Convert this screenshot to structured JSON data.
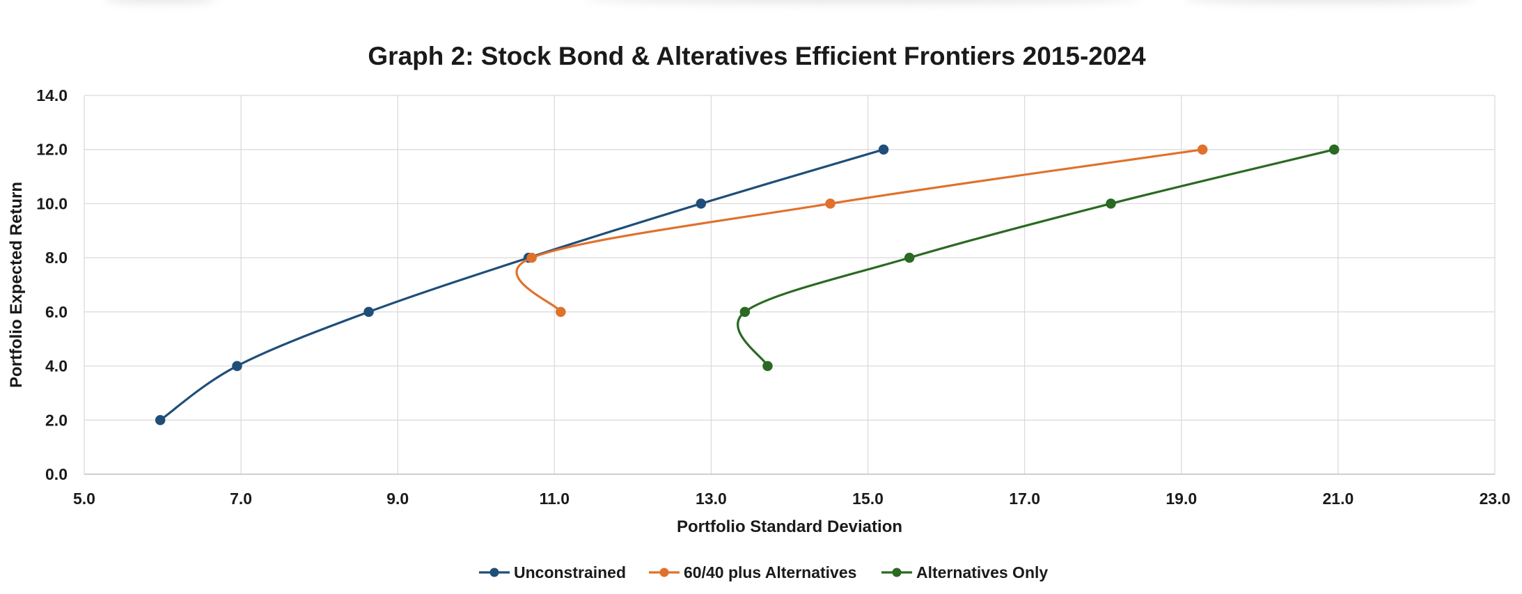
{
  "chart_data": {
    "type": "scatter",
    "title": "Graph 2: Stock Bond & Alteratives Efficient Frontiers  2015-2024",
    "xlabel": "Portfolio Standard Deviation",
    "ylabel": "Portfolio Expected Return",
    "xlim": [
      5.0,
      23.0
    ],
    "ylim": [
      0.0,
      14.0
    ],
    "xticks": [
      "5.0",
      "7.0",
      "9.0",
      "11.0",
      "13.0",
      "15.0",
      "17.0",
      "19.0",
      "21.0",
      "23.0"
    ],
    "yticks": [
      "0.0",
      "2.0",
      "4.0",
      "6.0",
      "8.0",
      "10.0",
      "12.0",
      "14.0"
    ],
    "grid": true,
    "legend_position": "bottom",
    "series": [
      {
        "name": "Unconstrained",
        "color": "#1f4e79",
        "points": [
          [
            5.97,
            2.0
          ],
          [
            6.95,
            4.0
          ],
          [
            8.63,
            6.0
          ],
          [
            10.67,
            8.0
          ],
          [
            12.87,
            10.0
          ],
          [
            15.2,
            12.0
          ]
        ]
      },
      {
        "name": "60/40 plus Alternatives",
        "color": "#e0712c",
        "points": [
          [
            11.08,
            6.0
          ],
          [
            10.71,
            8.0
          ],
          [
            14.52,
            10.0
          ],
          [
            19.27,
            12.0
          ]
        ]
      },
      {
        "name": "Alternatives Only",
        "color": "#2a6a22",
        "points": [
          [
            13.72,
            4.0
          ],
          [
            13.43,
            6.0
          ],
          [
            15.53,
            8.0
          ],
          [
            18.1,
            10.0
          ],
          [
            20.95,
            12.0
          ]
        ]
      }
    ]
  }
}
